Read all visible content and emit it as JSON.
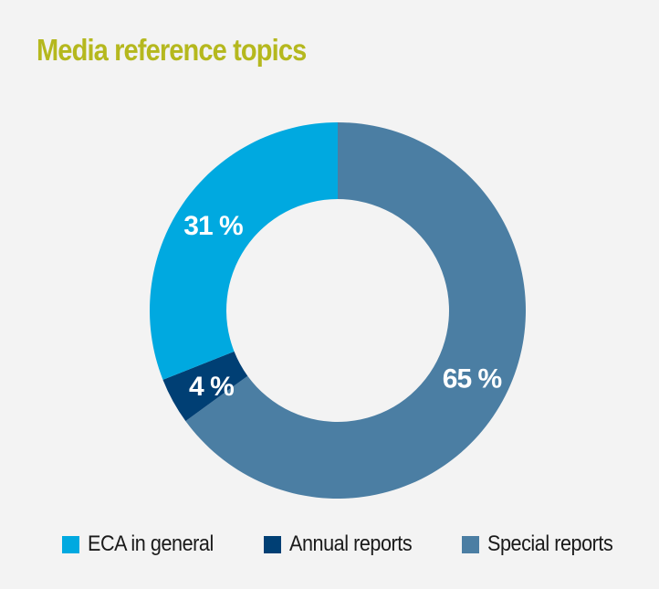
{
  "chart_data": {
    "type": "pie",
    "title": "Media reference topics",
    "categories": [
      "ECA in general",
      "Annual reports",
      "Special reports"
    ],
    "values": [
      31,
      4,
      65
    ],
    "labels": [
      "31 %",
      "4 %",
      "65 %"
    ],
    "colors": [
      "#00a9e0",
      "#003f74",
      "#4b7ea3"
    ],
    "donut": true,
    "legend_position": "bottom"
  }
}
